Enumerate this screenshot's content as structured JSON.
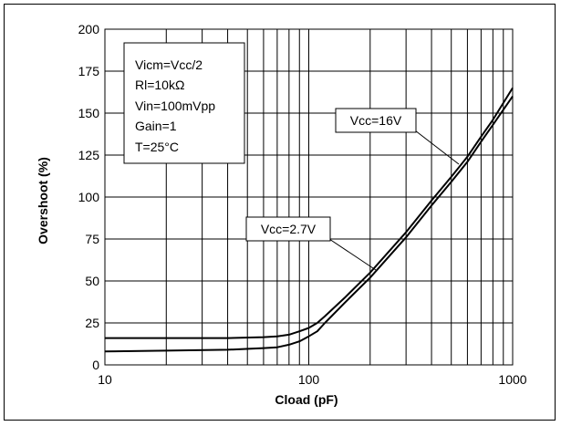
{
  "chart_data": {
    "type": "line",
    "xlabel": "Cload (pF)",
    "ylabel": "Overshoot (%)",
    "x_scale": "log",
    "xlim": [
      10,
      1000
    ],
    "ylim": [
      0,
      200
    ],
    "x_ticks": [
      "10",
      "100",
      "1000"
    ],
    "y_ticks": [
      "0",
      "25",
      "50",
      "75",
      "100",
      "125",
      "150",
      "175",
      "200"
    ],
    "grid": true,
    "conditions": [
      "Vicm=Vcc/2",
      "Rl=10kΩ",
      "Vin=100mVpp",
      "Gain=1",
      "T=25°C"
    ],
    "series": [
      {
        "name": "Vcc=2.7V",
        "x": [
          10,
          20,
          40,
          60,
          70,
          80,
          90,
          100,
          110,
          120,
          150,
          200,
          300,
          400,
          500,
          600,
          700,
          800,
          1000
        ],
        "y": [
          8,
          8.5,
          9,
          10,
          10.5,
          12,
          14,
          17,
          20,
          25,
          37,
          52,
          76,
          95,
          109,
          121,
          133,
          143,
          160
        ]
      },
      {
        "name": "Vcc=16V",
        "x": [
          10,
          20,
          40,
          60,
          70,
          80,
          90,
          100,
          110,
          120,
          150,
          200,
          300,
          400,
          500,
          600,
          700,
          800,
          1000
        ],
        "y": [
          16,
          16,
          16,
          16.5,
          17,
          18,
          20,
          22,
          25,
          29,
          40,
          55,
          79,
          98,
          112,
          124,
          136,
          146,
          165
        ]
      }
    ],
    "annotations": [
      {
        "text": "Vcc=16V",
        "target_series": "Vcc=16V"
      },
      {
        "text": "Vcc=2.7V",
        "target_series": "Vcc=2.7V"
      }
    ]
  }
}
